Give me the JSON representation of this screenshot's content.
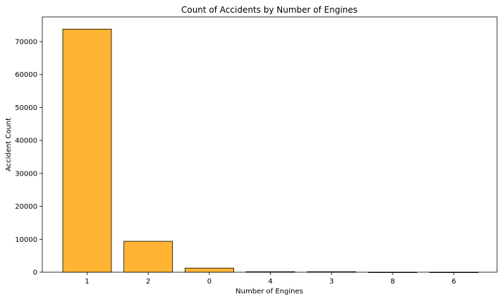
{
  "chart_data": {
    "type": "bar",
    "title": "Count of Accidents by Number of Engines",
    "xlabel": "Number of Engines",
    "ylabel": "Accident Count",
    "categories": [
      "1",
      "2",
      "0",
      "4",
      "3",
      "8",
      "6"
    ],
    "values": [
      73800,
      9400,
      1250,
      150,
      150,
      5,
      2
    ],
    "ylim": [
      0,
      77500
    ],
    "yticks": [
      0,
      10000,
      20000,
      30000,
      40000,
      50000,
      60000,
      70000
    ],
    "bar_color": "#ffb533",
    "bar_edge_color": "#000000",
    "grid": false,
    "legend": "none"
  }
}
